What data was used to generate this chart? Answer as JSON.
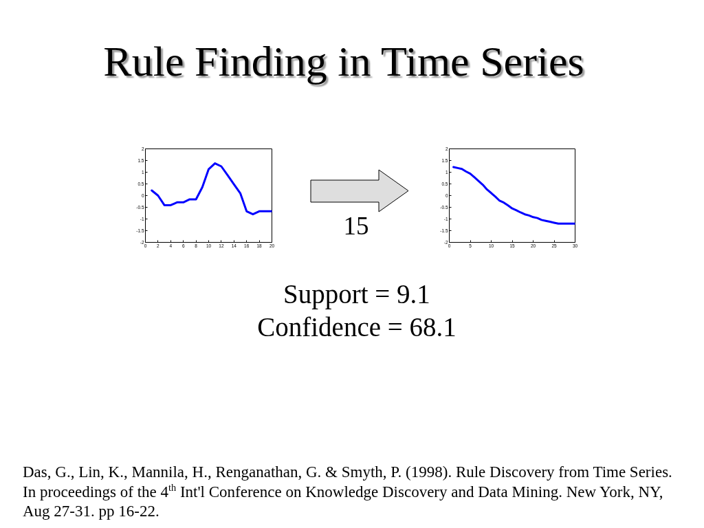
{
  "chart_data": [
    {
      "type": "other",
      "title": "Rule Finding in Time Series",
      "annotations": [
        "15",
        "Support = 9.1",
        "Confidence = 68.1",
        "Das, G., Lin, K., Mannila, H., Renganathan, G. & Smyth, P. (1998). Rule Discovery from Time Series. In proceedings of the 4$^{th}$ Int'l Conference on Knowledge Discovery and Data Mining. New York, NY, Aug 27-31. pp 16-22."
      ]
    },
    {
      "type": "line",
      "color": "#0000ff",
      "xlim": [
        0,
        20
      ],
      "ylim": [
        -2,
        2
      ],
      "xticks": [
        0,
        2,
        4,
        6,
        8,
        10,
        12,
        14,
        16,
        18,
        20
      ],
      "yticks": [
        -2,
        -1.5,
        -1,
        -0.5,
        0,
        0.5,
        1,
        1.5,
        2
      ],
      "x": [
        1,
        2,
        3,
        4,
        5,
        6,
        7,
        8,
        9,
        10,
        11,
        12,
        13,
        14,
        15,
        16,
        17,
        18,
        19,
        20
      ],
      "values": [
        0.22,
        0,
        -0.41,
        -0.41,
        -0.29,
        -0.29,
        -0.16,
        -0.16,
        0.36,
        1.13,
        1.38,
        1.25,
        0.87,
        0.48,
        0.1,
        -0.67,
        -0.8,
        -0.67,
        -0.67,
        -0.67
      ]
    },
    {
      "type": "line",
      "color": "#0000ff",
      "xlim": [
        0,
        30
      ],
      "ylim": [
        -2,
        2
      ],
      "xticks": [
        0,
        5,
        10,
        15,
        20,
        25,
        30
      ],
      "yticks": [
        -2,
        -1.5,
        -1,
        -0.5,
        0,
        0.5,
        1,
        1.5,
        2
      ],
      "x": [
        1,
        2,
        3,
        4,
        5,
        6,
        7,
        8,
        9,
        10,
        11,
        12,
        13,
        14,
        15,
        16,
        17,
        18,
        19,
        20,
        21,
        22,
        23,
        24,
        25,
        26,
        27,
        28,
        29,
        30
      ],
      "values": [
        1.22,
        1.18,
        1.14,
        1.03,
        0.94,
        0.78,
        0.62,
        0.46,
        0.26,
        0.11,
        -0.05,
        -0.22,
        -0.3,
        -0.42,
        -0.55,
        -0.63,
        -0.72,
        -0.8,
        -0.85,
        -0.92,
        -0.96,
        -1.04,
        -1.08,
        -1.12,
        -1.16,
        -1.2,
        -1.2,
        -1.2,
        -1.2,
        -1.2
      ]
    }
  ]
}
